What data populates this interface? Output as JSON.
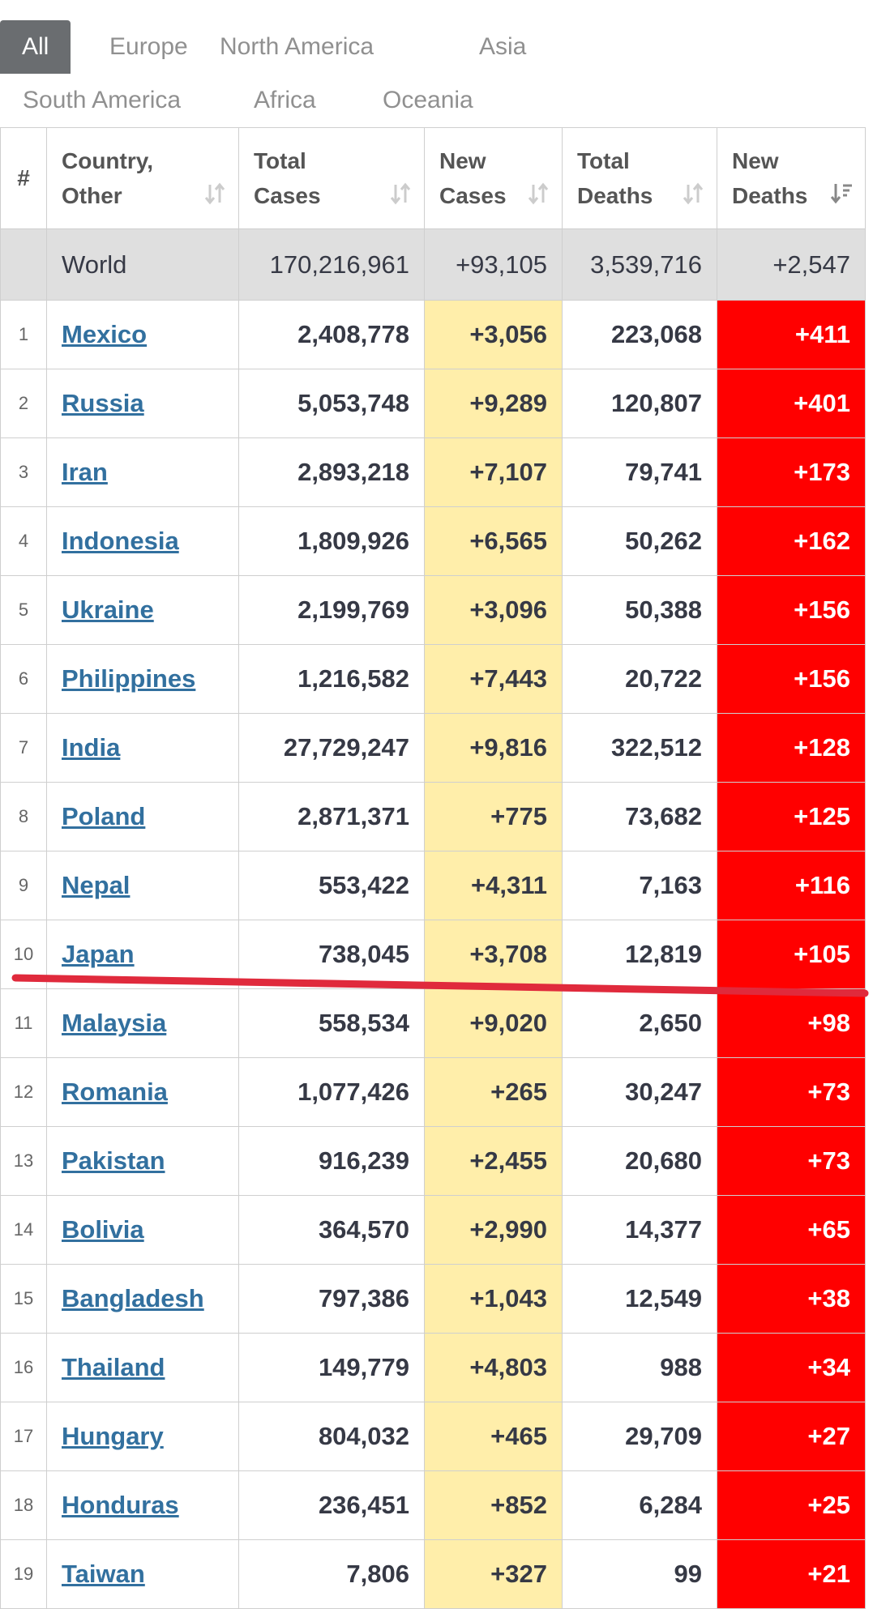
{
  "tabs": [
    "All",
    "Europe",
    "North America",
    "Asia",
    "South America",
    "Africa",
    "Oceania"
  ],
  "active_tab": 0,
  "table": {
    "headers": [
      "#",
      "Country, Other",
      "Total Cases",
      "New Cases",
      "Total Deaths",
      "New Deaths"
    ],
    "world": [
      "World",
      "170,216,961",
      "+93,105",
      "3,539,716",
      "+2,547"
    ],
    "rows": [
      [
        "1",
        "Mexico",
        "2,408,778",
        "+3,056",
        "223,068",
        "+411"
      ],
      [
        "2",
        "Russia",
        "5,053,748",
        "+9,289",
        "120,807",
        "+401"
      ],
      [
        "3",
        "Iran",
        "2,893,218",
        "+7,107",
        "79,741",
        "+173"
      ],
      [
        "4",
        "Indonesia",
        "1,809,926",
        "+6,565",
        "50,262",
        "+162"
      ],
      [
        "5",
        "Ukraine",
        "2,199,769",
        "+3,096",
        "50,388",
        "+156"
      ],
      [
        "6",
        "Philippines",
        "1,216,582",
        "+7,443",
        "20,722",
        "+156"
      ],
      [
        "7",
        "India",
        "27,729,247",
        "+9,816",
        "322,512",
        "+128"
      ],
      [
        "8",
        "Poland",
        "2,871,371",
        "+775",
        "73,682",
        "+125"
      ],
      [
        "9",
        "Nepal",
        "553,422",
        "+4,311",
        "7,163",
        "+116"
      ],
      [
        "10",
        "Japan",
        "738,045",
        "+3,708",
        "12,819",
        "+105"
      ],
      [
        "11",
        "Malaysia",
        "558,534",
        "+9,020",
        "2,650",
        "+98"
      ],
      [
        "12",
        "Romania",
        "1,077,426",
        "+265",
        "30,247",
        "+73"
      ],
      [
        "13",
        "Pakistan",
        "916,239",
        "+2,455",
        "20,680",
        "+73"
      ],
      [
        "14",
        "Bolivia",
        "364,570",
        "+2,990",
        "14,377",
        "+65"
      ],
      [
        "15",
        "Bangladesh",
        "797,386",
        "+1,043",
        "12,549",
        "+38"
      ],
      [
        "16",
        "Thailand",
        "149,779",
        "+4,803",
        "988",
        "+34"
      ],
      [
        "17",
        "Hungary",
        "804,032",
        "+465",
        "29,709",
        "+27"
      ],
      [
        "18",
        "Honduras",
        "236,451",
        "+852",
        "6,284",
        "+25"
      ],
      [
        "19",
        "Taiwan",
        "7,806",
        "+327",
        "99",
        "+21"
      ]
    ]
  }
}
